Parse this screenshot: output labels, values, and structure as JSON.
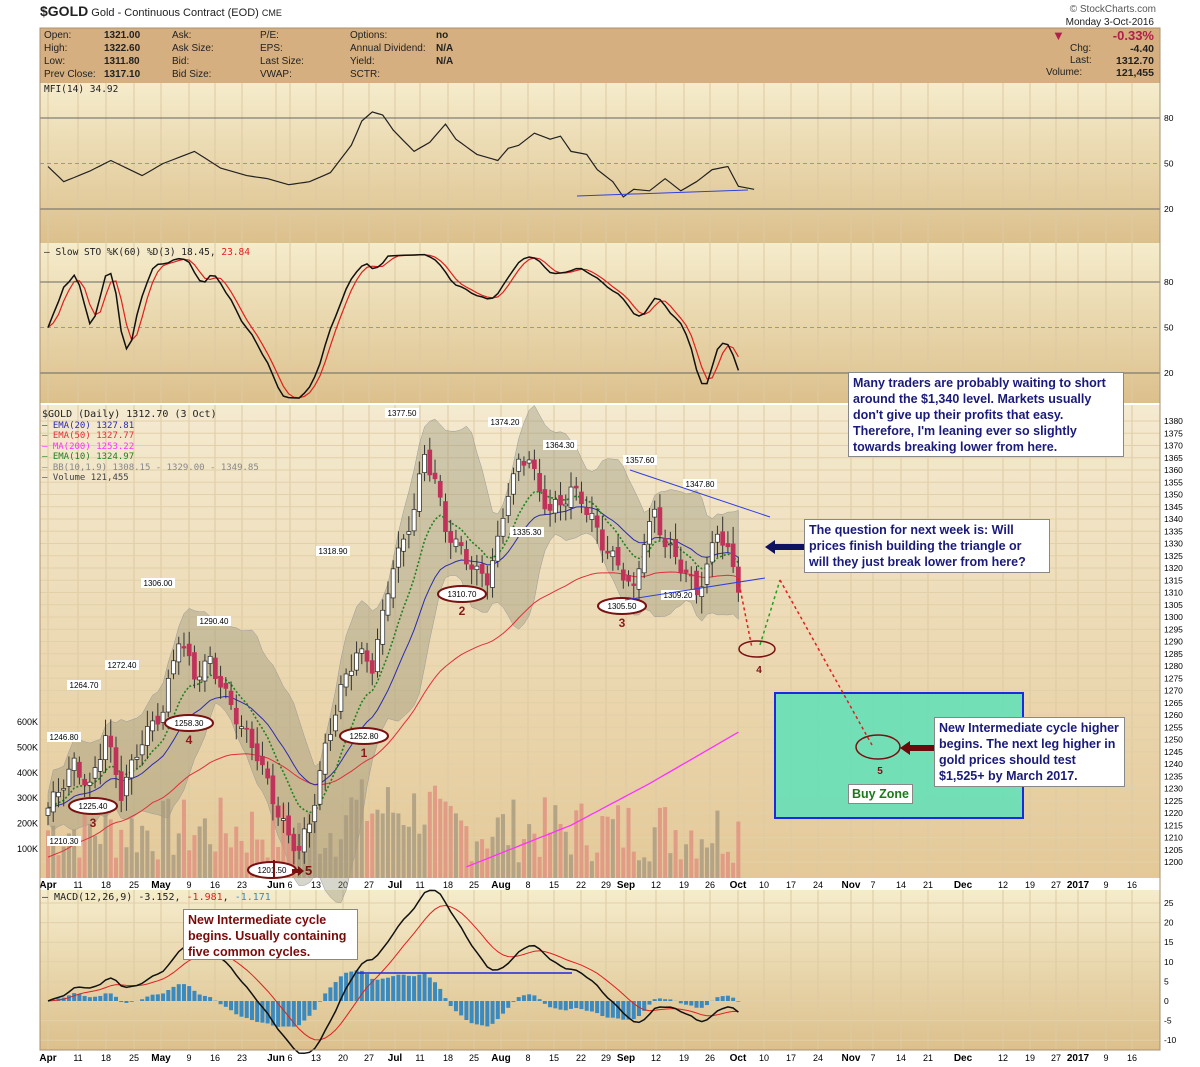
{
  "header": {
    "symbol": "$GOLD",
    "name": "Gold - Continuous Contract (EOD)",
    "exchange": "CME",
    "copyright": "© StockCharts.com",
    "fields": [
      {
        "label": "Open:",
        "value": "1321.00"
      },
      {
        "label": "High:",
        "value": "1322.60"
      },
      {
        "label": "Low:",
        "value": "1311.80"
      },
      {
        "label": "Prev Close:",
        "value": "1317.10"
      }
    ],
    "fields2": [
      "Ask:",
      "Ask Size:",
      "Bid:",
      "Bid Size:"
    ],
    "fields3": [
      "P/E:",
      "EPS:",
      "Last Size:",
      "VWAP:"
    ],
    "fields4": [
      {
        "label": "Options:",
        "value": "no"
      },
      {
        "label": "Annual Dividend:",
        "value": "N/A"
      },
      {
        "label": "Yield:",
        "value": "N/A"
      },
      {
        "label": "SCTR:",
        "value": ""
      }
    ],
    "date": "Monday  3-Oct-2016",
    "pct": "-0.33%",
    "chg_label": "Chg:",
    "chg": "-4.40",
    "last_label": "Last:",
    "last": "1312.70",
    "vol_label": "Volume:",
    "volume": "121,455"
  },
  "colors": {
    "up": "#ffffff",
    "down": "#c0325a",
    "ema20": "#2a2ab0",
    "ema50": "#e0303c",
    "ma200": "#ff30ff",
    "ema10": "#208020",
    "note_navy": "#1a1a7a",
    "note_maroon": "#7a0a0a"
  },
  "chart_data": [
    {
      "type": "line",
      "title": "MFI(14) 34.92",
      "ylim": [
        0,
        100
      ],
      "yticks": [
        80,
        50,
        20
      ],
      "anchors": [
        [
          0,
          48
        ],
        [
          3,
          38
        ],
        [
          8,
          45
        ],
        [
          12,
          52
        ],
        [
          18,
          42
        ],
        [
          22,
          50
        ],
        [
          28,
          58
        ],
        [
          33,
          47
        ],
        [
          38,
          42
        ],
        [
          42,
          40
        ],
        [
          46,
          36
        ],
        [
          50,
          38
        ],
        [
          54,
          44
        ],
        [
          58,
          62
        ],
        [
          60,
          78
        ],
        [
          62,
          84
        ],
        [
          64,
          82
        ],
        [
          66,
          72
        ],
        [
          70,
          58
        ],
        [
          73,
          64
        ],
        [
          76,
          76
        ],
        [
          78,
          66
        ],
        [
          82,
          56
        ],
        [
          86,
          52
        ],
        [
          88,
          60
        ],
        [
          90,
          62
        ],
        [
          93,
          70
        ],
        [
          96,
          66
        ],
        [
          98,
          68
        ],
        [
          100,
          58
        ],
        [
          103,
          56
        ],
        [
          105,
          46
        ],
        [
          108,
          38
        ],
        [
          110,
          28
        ],
        [
          112,
          33
        ],
        [
          115,
          32
        ],
        [
          118,
          40
        ],
        [
          121,
          32
        ],
        [
          124,
          38
        ],
        [
          127,
          46
        ],
        [
          130,
          48
        ],
        [
          132,
          35
        ],
        [
          135,
          33
        ]
      ]
    },
    {
      "type": "line",
      "title": "Slow STO %K(60) %D(3)",
      "k_label": "18.45",
      "d_label": "23.84",
      "ylim": [
        0,
        100
      ],
      "yticks": [
        80,
        50,
        20
      ]
    },
    {
      "type": "candlestick",
      "title": "$GOLD (Daily) 1312.70 (3 Oct)",
      "ylim": [
        1197,
        1383
      ],
      "legend": [
        {
          "name": "EMA(20)",
          "value": "1327.81"
        },
        {
          "name": "EMA(50)",
          "value": "1327.77"
        },
        {
          "name": "MA(200)",
          "value": "1253.22"
        },
        {
          "name": "EMA(10)",
          "value": "1324.97"
        },
        {
          "name": "BB(10,1.9)",
          "value": "1308.15 - 1329.00 - 1349.85"
        },
        {
          "name": "Volume",
          "value": "121,455"
        }
      ],
      "close_anchors": [
        [
          0,
          1222
        ],
        [
          5,
          1240
        ],
        [
          8,
          1230
        ],
        [
          11,
          1252
        ],
        [
          14,
          1228
        ],
        [
          18,
          1250
        ],
        [
          22,
          1262
        ],
        [
          25,
          1292
        ],
        [
          28,
          1276
        ],
        [
          31,
          1282
        ],
        [
          34,
          1268
        ],
        [
          37,
          1255
        ],
        [
          40,
          1244
        ],
        [
          44,
          1220
        ],
        [
          46,
          1210
        ],
        [
          48,
          1205
        ],
        [
          50,
          1216
        ],
        [
          53,
          1246
        ],
        [
          56,
          1270
        ],
        [
          59,
          1286
        ],
        [
          62,
          1280
        ],
        [
          64,
          1300
        ],
        [
          66,
          1322
        ],
        [
          68,
          1330
        ],
        [
          70,
          1345
        ],
        [
          72,
          1366
        ],
        [
          74,
          1356
        ],
        [
          76,
          1336
        ],
        [
          78,
          1330
        ],
        [
          80,
          1324
        ],
        [
          82,
          1318
        ],
        [
          84,
          1316
        ],
        [
          86,
          1330
        ],
        [
          88,
          1352
        ],
        [
          90,
          1362
        ],
        [
          92,
          1366
        ],
        [
          94,
          1350
        ],
        [
          96,
          1344
        ],
        [
          98,
          1346
        ],
        [
          100,
          1352
        ],
        [
          102,
          1348
        ],
        [
          104,
          1340
        ],
        [
          106,
          1330
        ],
        [
          108,
          1324
        ],
        [
          110,
          1318
        ],
        [
          112,
          1310
        ],
        [
          114,
          1332
        ],
        [
          116,
          1342
        ],
        [
          118,
          1330
        ],
        [
          120,
          1324
        ],
        [
          122,
          1318
        ],
        [
          124,
          1310
        ],
        [
          126,
          1320
        ],
        [
          128,
          1336
        ],
        [
          130,
          1326
        ],
        [
          132,
          1313
        ]
      ],
      "ma200_anchors": [
        [
          80,
          1198
        ],
        [
          100,
          1215
        ],
        [
          115,
          1232
        ],
        [
          132,
          1253
        ]
      ],
      "price_labels": [
        "1377.50",
        "1374.20",
        "1364.30",
        "1357.60",
        "1347.80",
        "1335.30",
        "1318.90",
        "1306.00",
        "1290.40",
        "1272.40",
        "1264.70",
        "1246.80",
        "1309.20",
        "1210.30"
      ],
      "cycle_lows": [
        {
          "price": "1225.40",
          "cycle": "3"
        },
        {
          "price": "1258.30",
          "cycle": "4"
        },
        {
          "price": "1252.80",
          "cycle": "1"
        },
        {
          "price": "1310.70",
          "cycle": "2"
        },
        {
          "price": "1305.50",
          "cycle": "3"
        },
        {
          "price": "1201.50",
          "cycle": "5"
        }
      ],
      "projections": [
        {
          "cycle": "4"
        },
        {
          "cycle": "5"
        }
      ],
      "yticks": [
        1380,
        1375,
        1370,
        1365,
        1360,
        1355,
        1350,
        1345,
        1340,
        1335,
        1330,
        1325,
        1320,
        1315,
        1310,
        1305,
        1300,
        1295,
        1290,
        1285,
        1280,
        1275,
        1270,
        1265,
        1260,
        1255,
        1250,
        1245,
        1240,
        1235,
        1230,
        1225,
        1220,
        1215,
        1210,
        1205,
        1200
      ],
      "volume_ticks": [
        "600K",
        "500K",
        "400K",
        "300K",
        "200K",
        "100K"
      ]
    },
    {
      "type": "line",
      "title": "MACD(12,26,9)",
      "macd": "-3.152",
      "signal": "-1.981",
      "hist": "-1.171",
      "ylim": [
        -12,
        27
      ],
      "yticks": [
        25,
        20,
        15,
        10,
        5,
        0,
        -5,
        -10
      ]
    }
  ],
  "xaxis": [
    "Apr",
    "11",
    "18",
    "25",
    "May",
    "9",
    "16",
    "23",
    "Jun",
    "6",
    "13",
    "20",
    "27",
    "Jul",
    "11",
    "18",
    "25",
    "Aug",
    "8",
    "15",
    "22",
    "29",
    "Sep",
    "12",
    "19",
    "26",
    "Oct",
    "10",
    "17",
    "24",
    "Nov",
    "7",
    "14",
    "21",
    "Dec",
    "12",
    "19",
    "27",
    "2017",
    "9",
    "16"
  ],
  "notes": {
    "short": "Many traders are probably waiting to short around the $1,340 level. Markets usually don't give up their profits that easy. Therefore, I'm leaning ever so slightly towards breaking lower from here.",
    "question": "The question for next week is: Will prices finish building the triangle or will they just break lower from here?",
    "new_cycle": "New Intermediate cycle higher begins. The next leg higher in gold prices should test $1,525+ by March 2017.",
    "macd_note": "New Intermediate cycle begins. Usually containing five common cycles.",
    "buy_zone": "Buy Zone"
  }
}
